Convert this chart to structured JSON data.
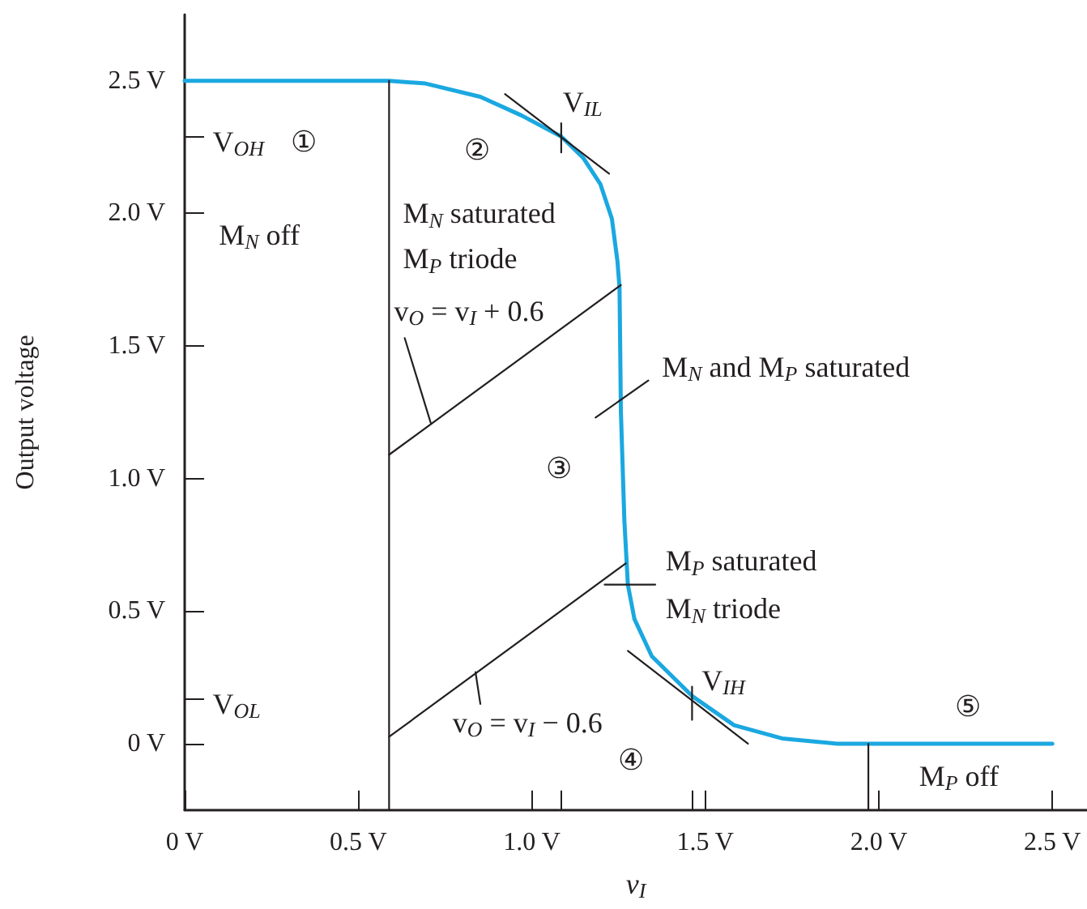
{
  "chart_data": {
    "type": "line",
    "xlabel": "v$_{I}$",
    "ylabel": "Output voltage",
    "xlim": [
      0,
      2.6
    ],
    "ylim": [
      -0.25,
      2.75
    ],
    "xticks": [
      {
        "value": 0,
        "label": "0 V"
      },
      {
        "value": 0.5,
        "label": "0.5 V"
      },
      {
        "value": 1.0,
        "label": "1.0 V"
      },
      {
        "value": 1.085,
        "label": null
      },
      {
        "value": 1.462,
        "label": null
      },
      {
        "value": 1.5,
        "label": "1.5 V"
      },
      {
        "value": 2.0,
        "label": "2.0 V"
      },
      {
        "value": 2.5,
        "label": "2.5 V"
      }
    ],
    "yticks": [
      {
        "value": 0,
        "label": "0 V"
      },
      {
        "value": 0.17,
        "label": null
      },
      {
        "value": 0.5,
        "label": "0.5 V"
      },
      {
        "value": 1.0,
        "label": "1.0 V"
      },
      {
        "value": 1.5,
        "label": "1.5 V"
      },
      {
        "value": 2.0,
        "label": "2.0 V"
      },
      {
        "value": 2.29,
        "label": null
      },
      {
        "value": 2.5,
        "label": "2.5 V"
      }
    ],
    "grid": false,
    "marker": "none",
    "line_style": "solid",
    "series": [
      {
        "color": "#1ba8e0",
        "x": [
          0,
          0.589,
          0.694,
          0.852,
          0.97,
          1.085,
          1.148,
          1.198,
          1.231,
          1.247,
          1.253,
          1.257,
          1.267,
          1.277,
          1.296,
          1.346,
          1.462,
          1.583,
          1.721,
          1.88,
          2.5
        ],
        "values": [
          2.5,
          2.5,
          2.49,
          2.44,
          2.37,
          2.29,
          2.21,
          2.11,
          1.98,
          1.82,
          1.72,
          1.25,
          0.84,
          0.6,
          0.47,
          0.33,
          0.18,
          0.07,
          0.02,
          0,
          0
        ]
      },
      {
        "color": "#231f20",
        "x": [
          0.589,
          0.589
        ],
        "values": [
          -0.25,
          2.5
        ]
      },
      {
        "color": "#231f20",
        "x": [
          1.97,
          1.97
        ],
        "values": [
          -0.25,
          0
        ]
      },
      {
        "color": "#231f20",
        "x": [
          0.589,
          1.257
        ],
        "values": [
          1.09,
          1.73
        ]
      },
      {
        "color": "#231f20",
        "x": [
          0.589,
          1.271
        ],
        "values": [
          0.026,
          0.68
        ]
      },
      {
        "color": "#231f20",
        "x": [
          0.923,
          1.223
        ],
        "values": [
          2.45,
          2.15
        ]
      },
      {
        "color": "#231f20",
        "x": [
          1.277,
          1.623
        ],
        "values": [
          0.35,
          0
        ]
      },
      {
        "color": "#231f20",
        "x": [
          1.085,
          1.085
        ],
        "values": [
          2.34,
          2.23
        ]
      },
      {
        "color": "#231f20",
        "x": [
          1.462,
          1.462
        ],
        "values": [
          0.215,
          0.09
        ]
      },
      {
        "color": "#231f20",
        "x": [
          1.21,
          1.356
        ],
        "values": [
          0.6,
          0.6
        ]
      },
      {
        "color": "#231f20",
        "x": [
          0.634,
          0.709
        ],
        "values": [
          1.53,
          1.21
        ]
      },
      {
        "color": "#231f20",
        "x": [
          1.184,
          1.336
        ],
        "values": [
          1.23,
          1.37
        ]
      },
      {
        "color": "#231f20",
        "x": [
          0.838,
          0.852
        ],
        "values": [
          0.27,
          0.15
        ]
      }
    ],
    "annotations": [
      "V$_{OH}$",
      "①",
      "M$_{N}$ off",
      "②",
      "M$_{N}$ saturated",
      "M$_{P}$ triode",
      "v$_{O}$ = v$_{I}$ + 0.6",
      "V$_{IL}$",
      "M$_{N}$ and M$_{P}$ saturated",
      "③",
      "M$_{P}$ saturated",
      "M$_{N}$ triode",
      "V$_{IH}$",
      "V$_{OL}$",
      "v$_{O}$ = v$_{I}$ − 0.6",
      "④",
      "⑤",
      "M$_{P}$ off"
    ]
  }
}
